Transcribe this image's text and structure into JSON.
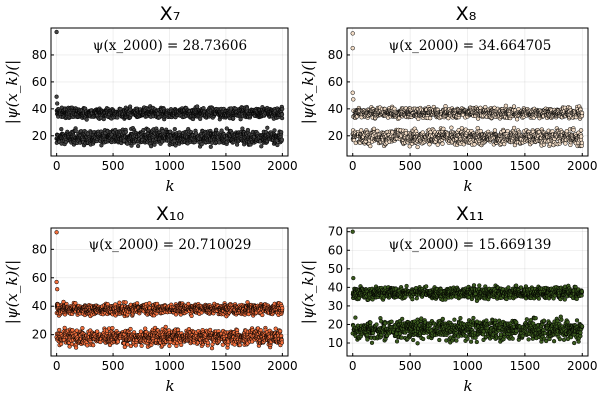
{
  "chart_data": [
    {
      "type": "scatter",
      "title": "X₇",
      "xlabel": "k",
      "ylabel": "|ψ(x_k)(|",
      "annotation": "ψ(x_2000) = 28.73606",
      "xlim": [
        -50,
        2050
      ],
      "ylim": [
        5,
        100
      ],
      "xticks": [
        0,
        500,
        1000,
        1500,
        2000
      ],
      "yticks": [
        20,
        40,
        60,
        80
      ],
      "xtick_labels": [
        "0",
        "500",
        "1000",
        "1500",
        "2000"
      ],
      "ytick_labels": [
        "20",
        "40",
        "60",
        "80"
      ],
      "grid": true,
      "legend": "none",
      "marker_color": "#444444",
      "n_points": 2000,
      "bands": [
        {
          "center": 37,
          "spread": 3.5,
          "fraction": 0.5
        },
        {
          "center": 19,
          "spread": 5,
          "fraction": 0.5
        }
      ],
      "outliers": [
        {
          "x": 0,
          "y": 97
        },
        {
          "x": 0,
          "y": 49
        },
        {
          "x": 5,
          "y": 44
        }
      ]
    },
    {
      "type": "scatter",
      "title": "X₈",
      "xlabel": "k",
      "ylabel": "|ψ(x_k)(|",
      "annotation": "ψ(x_2000) = 34.664705",
      "xlim": [
        -50,
        2050
      ],
      "ylim": [
        5,
        100
      ],
      "xticks": [
        0,
        500,
        1000,
        1500,
        2000
      ],
      "yticks": [
        20,
        40,
        60,
        80
      ],
      "xtick_labels": [
        "0",
        "500",
        "1000",
        "1500",
        "2000"
      ],
      "ytick_labels": [
        "20",
        "40",
        "60",
        "80"
      ],
      "grid": true,
      "legend": "none",
      "marker_color": "#f2dcc6",
      "n_points": 2000,
      "bands": [
        {
          "center": 37,
          "spread": 3.5,
          "fraction": 0.5
        },
        {
          "center": 19,
          "spread": 5,
          "fraction": 0.5
        }
      ],
      "outliers": [
        {
          "x": 0,
          "y": 96
        },
        {
          "x": 0,
          "y": 85
        },
        {
          "x": 0,
          "y": 52
        },
        {
          "x": 5,
          "y": 47
        }
      ]
    },
    {
      "type": "scatter",
      "title": "X₁₀",
      "xlabel": "k",
      "ylabel": "|ψ(x_k)(|",
      "annotation": "ψ(x_2000) = 20.710029",
      "xlim": [
        -50,
        2050
      ],
      "ylim": [
        5,
        95
      ],
      "xticks": [
        0,
        500,
        1000,
        1500,
        2000
      ],
      "yticks": [
        20,
        40,
        60,
        80
      ],
      "xtick_labels": [
        "0",
        "500",
        "1000",
        "1500",
        "2000"
      ],
      "ytick_labels": [
        "20",
        "40",
        "60",
        "80"
      ],
      "grid": true,
      "legend": "none",
      "marker_color": "#f26f3d",
      "n_points": 2000,
      "bands": [
        {
          "center": 38,
          "spread": 3.5,
          "fraction": 0.5
        },
        {
          "center": 18,
          "spread": 5,
          "fraction": 0.5
        }
      ],
      "outliers": [
        {
          "x": 0,
          "y": 92
        },
        {
          "x": 0,
          "y": 57
        },
        {
          "x": 5,
          "y": 52
        }
      ]
    },
    {
      "type": "scatter",
      "title": "X₁₁",
      "xlabel": "k",
      "ylabel": "|ψ(x_k)(|",
      "annotation": "ψ(x_2000) = 15.669139",
      "xlim": [
        -50,
        2050
      ],
      "ylim": [
        3,
        72
      ],
      "xticks": [
        0,
        500,
        1000,
        1500,
        2000
      ],
      "yticks": [
        10,
        20,
        30,
        40,
        50,
        60,
        70
      ],
      "xtick_labels": [
        "0",
        "500",
        "1000",
        "1500",
        "2000"
      ],
      "ytick_labels": [
        "10",
        "20",
        "30",
        "40",
        "50",
        "60",
        "70"
      ],
      "grid": true,
      "legend": "none",
      "marker_color": "#3a5a1e",
      "n_points": 2000,
      "bands": [
        {
          "center": 37,
          "spread": 3,
          "fraction": 0.5
        },
        {
          "center": 17,
          "spread": 5,
          "fraction": 0.5
        }
      ],
      "outliers": [
        {
          "x": 0,
          "y": 70
        },
        {
          "x": 5,
          "y": 45
        }
      ]
    }
  ]
}
